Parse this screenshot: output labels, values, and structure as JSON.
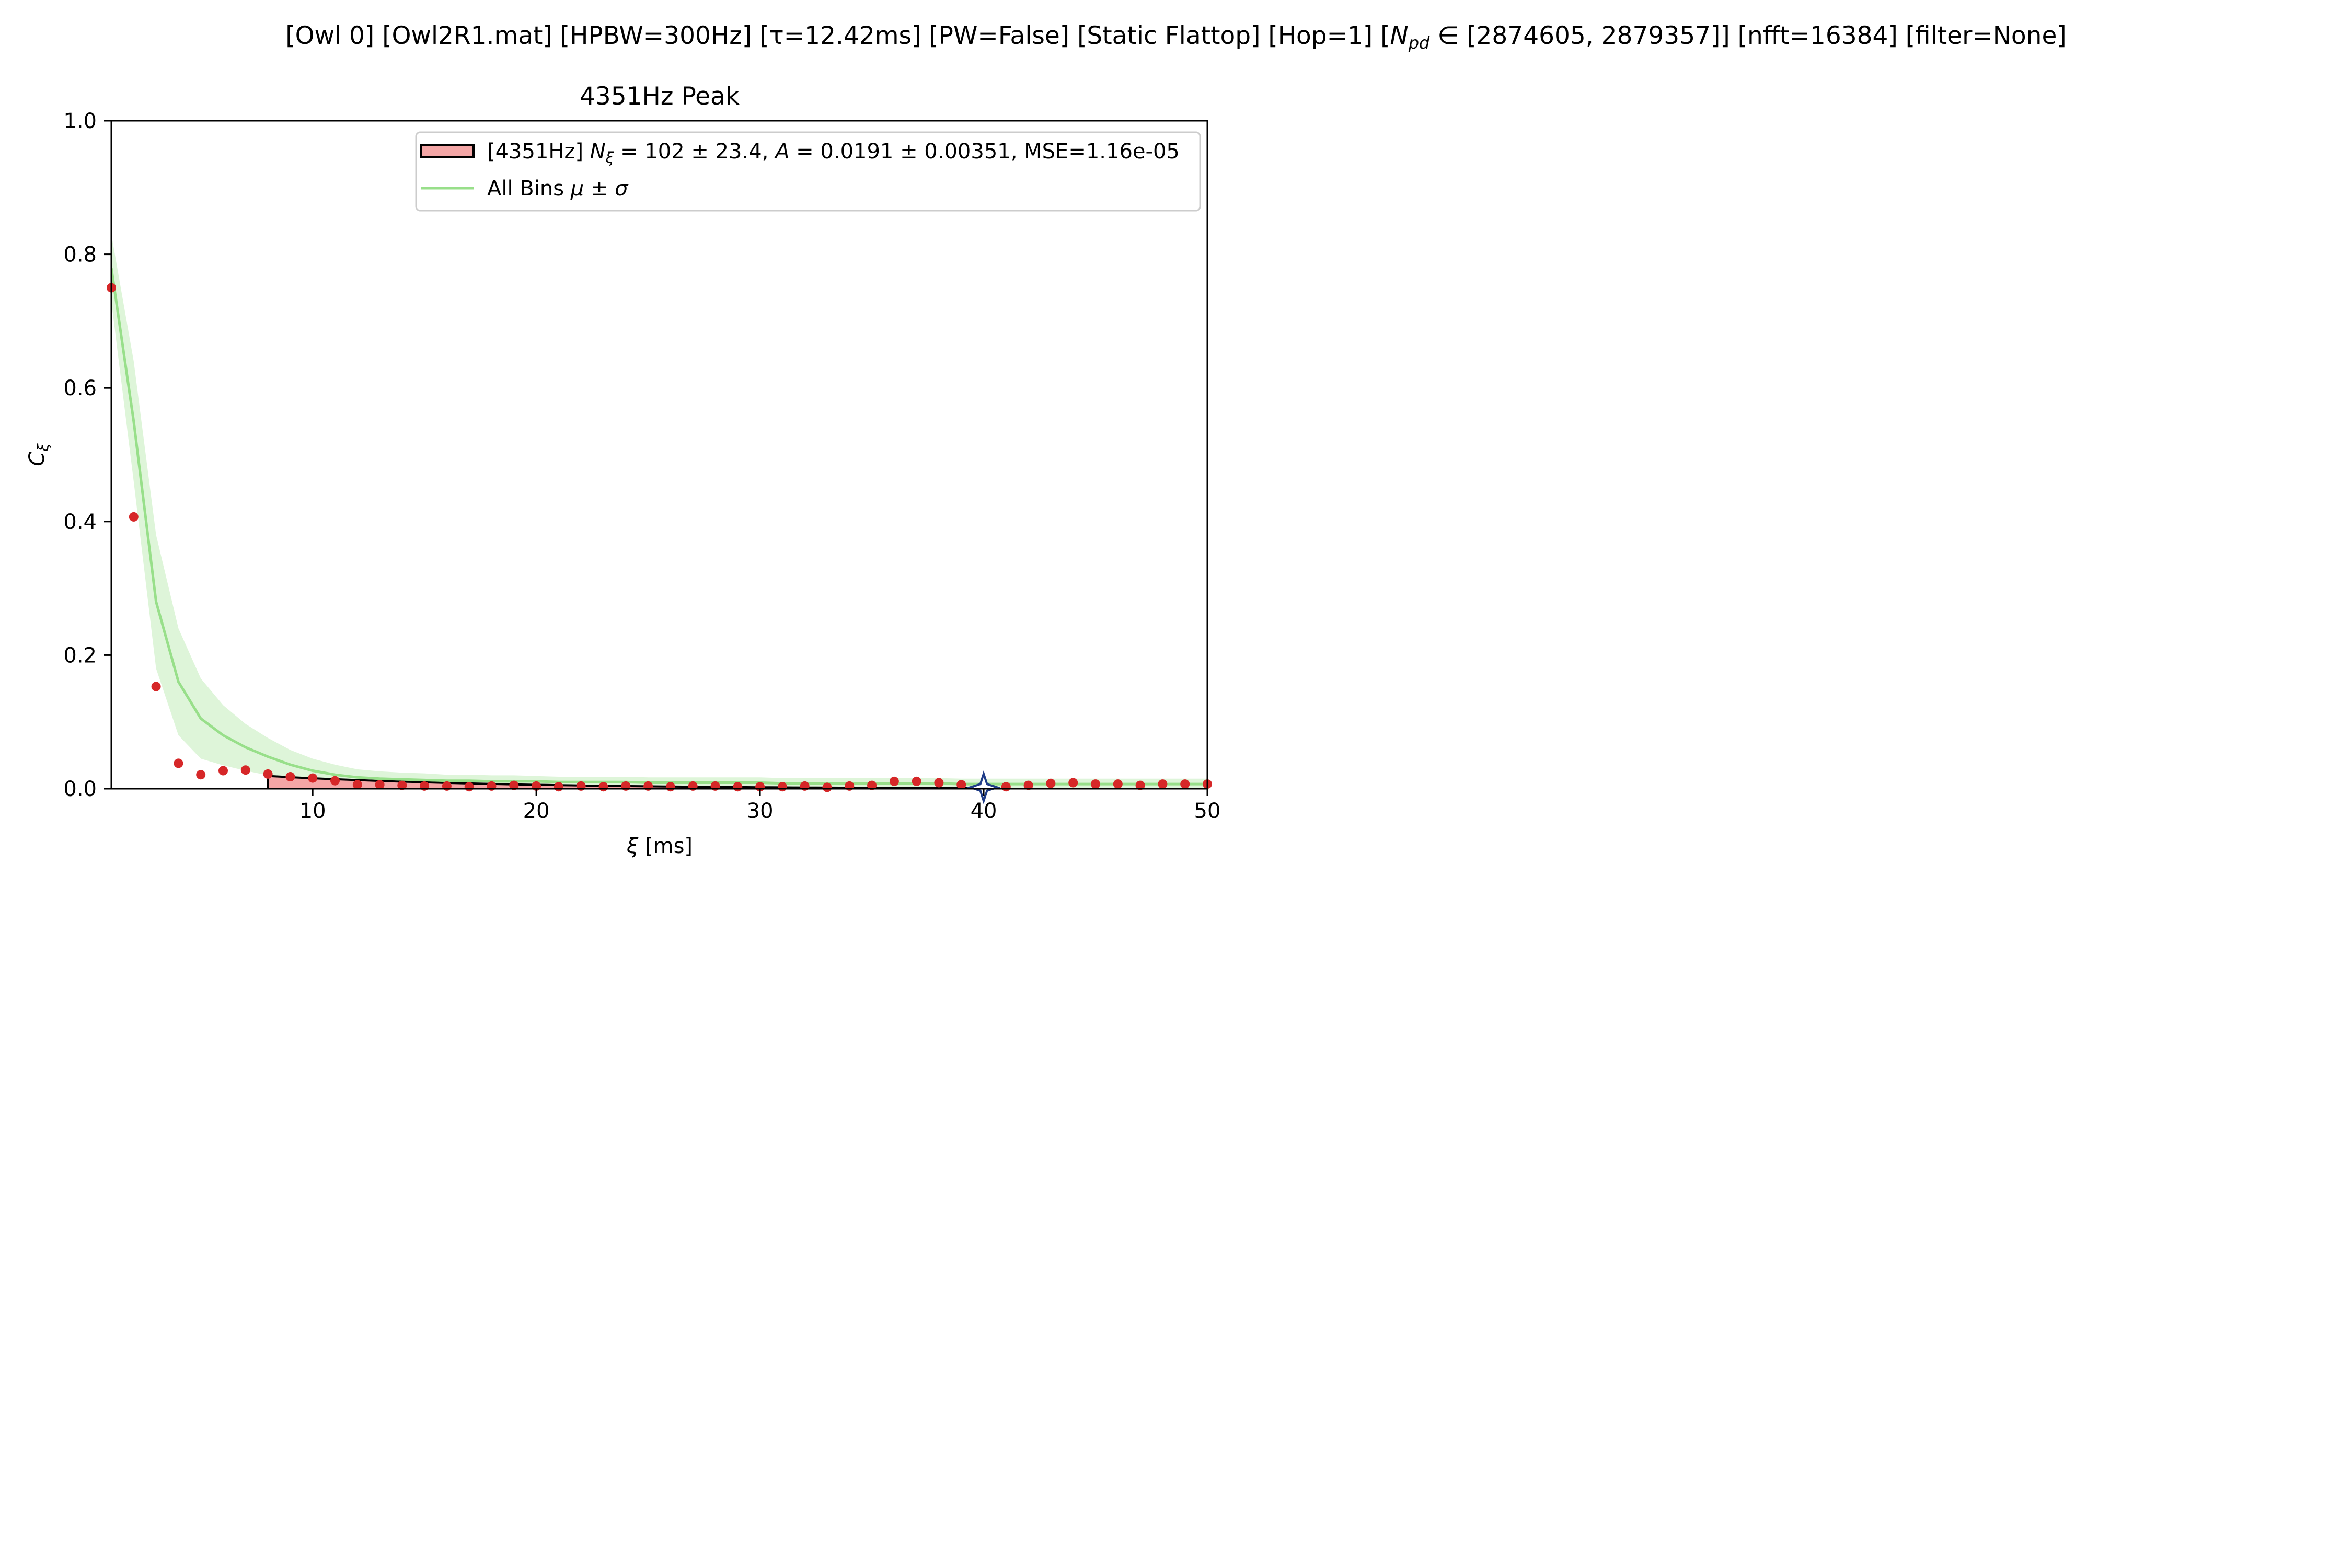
{
  "figure": {
    "suptitle": "[Owl 0]   [Owl2R1.mat]   [HPBW=300Hz]   [τ=12.42ms]   [PW=False]   [Static Flattop]   [Hop=1]   [N_pd ∈ [2874605, 2879357]]   [nfft=16384]   [filter=None]",
    "suptitle_parts": {
      "before": "[Owl 0]   [Owl2R1.mat]   [HPBW=300Hz]   [τ=12.42ms]   [PW=False]   [Static Flattop]   [Hop=1]   [",
      "n_symbol": "N",
      "n_sub": "pd",
      "after": " ∈ [2874605, 2879357]]   [nfft=16384]   [filter=None]"
    }
  },
  "chart_data": {
    "type": "scatter",
    "title": "4351Hz Peak",
    "xlabel": "ξ [ms]",
    "ylabel": "C_ξ",
    "xlim": [
      1,
      50
    ],
    "ylim": [
      0,
      1.0
    ],
    "xticks": [
      10,
      20,
      30,
      40,
      50
    ],
    "yticks": [
      0.0,
      0.2,
      0.4,
      0.6,
      0.8,
      1.0
    ],
    "ytick_labels": [
      "0.0",
      "0.2",
      "0.4",
      "0.6",
      "0.8",
      "1.0"
    ],
    "grid": false,
    "legend_position": "top-right",
    "legend": [
      {
        "text": "[4351Hz] N_ξ = 102 ± 23.4, A = 0.0191 ± 0.00351, MSE=1.16e-05",
        "pre": "[4351Hz] ",
        "n": "N",
        "n_sub": "ξ",
        "rest": " = 102 ± 23.4, ",
        "a": "A",
        "rest2": " = 0.0191 ± 0.00351, MSE=1.16e-05",
        "swatch": "filled-box"
      },
      {
        "text": "All Bins μ ± σ",
        "pre": "All Bins ",
        "mu": "μ",
        "pm": " ± ",
        "sigma": "σ",
        "swatch": "line"
      }
    ],
    "colors": {
      "points": "#d62728",
      "fit_fill": "#f4a6a6",
      "mean_line": "#98df8a",
      "band": "#98df8a",
      "marker": "#1f3c88"
    },
    "fit_range": [
      8,
      39.3
    ],
    "fit": {
      "N": 102,
      "N_err": 23.4,
      "A": 0.0191,
      "A_err": 0.00351,
      "MSE": 1.16e-05
    },
    "star_marker": {
      "x": 40,
      "y": 0.002
    },
    "series": [
      {
        "name": "[4351Hz]",
        "x": [
          1,
          2,
          3,
          4,
          5,
          6,
          7,
          8,
          9,
          10,
          11,
          12,
          13,
          14,
          15,
          16,
          17,
          18,
          19,
          20,
          21,
          22,
          23,
          24,
          25,
          26,
          27,
          28,
          29,
          30,
          31,
          32,
          33,
          34,
          35,
          36,
          37,
          38,
          39,
          40,
          41,
          42,
          43,
          44,
          45,
          46,
          47,
          48,
          49,
          50
        ],
        "y": [
          0.75,
          0.407,
          0.153,
          0.038,
          0.021,
          0.027,
          0.028,
          0.022,
          0.018,
          0.016,
          0.012,
          0.006,
          0.006,
          0.005,
          0.004,
          0.004,
          0.003,
          0.004,
          0.005,
          0.004,
          0.003,
          0.004,
          0.003,
          0.004,
          0.004,
          0.003,
          0.004,
          0.004,
          0.003,
          0.003,
          0.003,
          0.004,
          0.002,
          0.004,
          0.005,
          0.011,
          0.011,
          0.009,
          0.006,
          0.004,
          0.003,
          0.005,
          0.008,
          0.009,
          0.007,
          0.007,
          0.005,
          0.007,
          0.007,
          0.007
        ]
      },
      {
        "name": "All Bins μ ± σ",
        "x": [
          1,
          2,
          3,
          4,
          5,
          6,
          7,
          8,
          9,
          10,
          11,
          12,
          13,
          14,
          15,
          16,
          17,
          18,
          19,
          20,
          21,
          22,
          23,
          24,
          25,
          26,
          27,
          28,
          29,
          30,
          31,
          32,
          33,
          34,
          35,
          36,
          37,
          38,
          39,
          40,
          41,
          42,
          43,
          44,
          45,
          46,
          47,
          48,
          49,
          50
        ],
        "mean": [
          0.78,
          0.55,
          0.28,
          0.16,
          0.105,
          0.08,
          0.062,
          0.048,
          0.036,
          0.027,
          0.021,
          0.017,
          0.015,
          0.014,
          0.013,
          0.012,
          0.012,
          0.011,
          0.011,
          0.011,
          0.01,
          0.01,
          0.01,
          0.01,
          0.009,
          0.009,
          0.009,
          0.009,
          0.009,
          0.009,
          0.008,
          0.008,
          0.008,
          0.008,
          0.008,
          0.008,
          0.008,
          0.008,
          0.007,
          0.007,
          0.007,
          0.007,
          0.007,
          0.007,
          0.007,
          0.007,
          0.007,
          0.007,
          0.007,
          0.007
        ],
        "std": [
          0.05,
          0.09,
          0.1,
          0.08,
          0.06,
          0.045,
          0.035,
          0.028,
          0.022,
          0.018,
          0.015,
          0.012,
          0.011,
          0.01,
          0.01,
          0.009,
          0.009,
          0.009,
          0.009,
          0.008,
          0.008,
          0.008,
          0.008,
          0.008,
          0.008,
          0.008,
          0.008,
          0.008,
          0.008,
          0.008,
          0.008,
          0.008,
          0.008,
          0.008,
          0.008,
          0.008,
          0.008,
          0.008,
          0.008,
          0.008,
          0.008,
          0.008,
          0.008,
          0.008,
          0.008,
          0.008,
          0.008,
          0.008,
          0.008,
          0.008
        ]
      }
    ]
  }
}
